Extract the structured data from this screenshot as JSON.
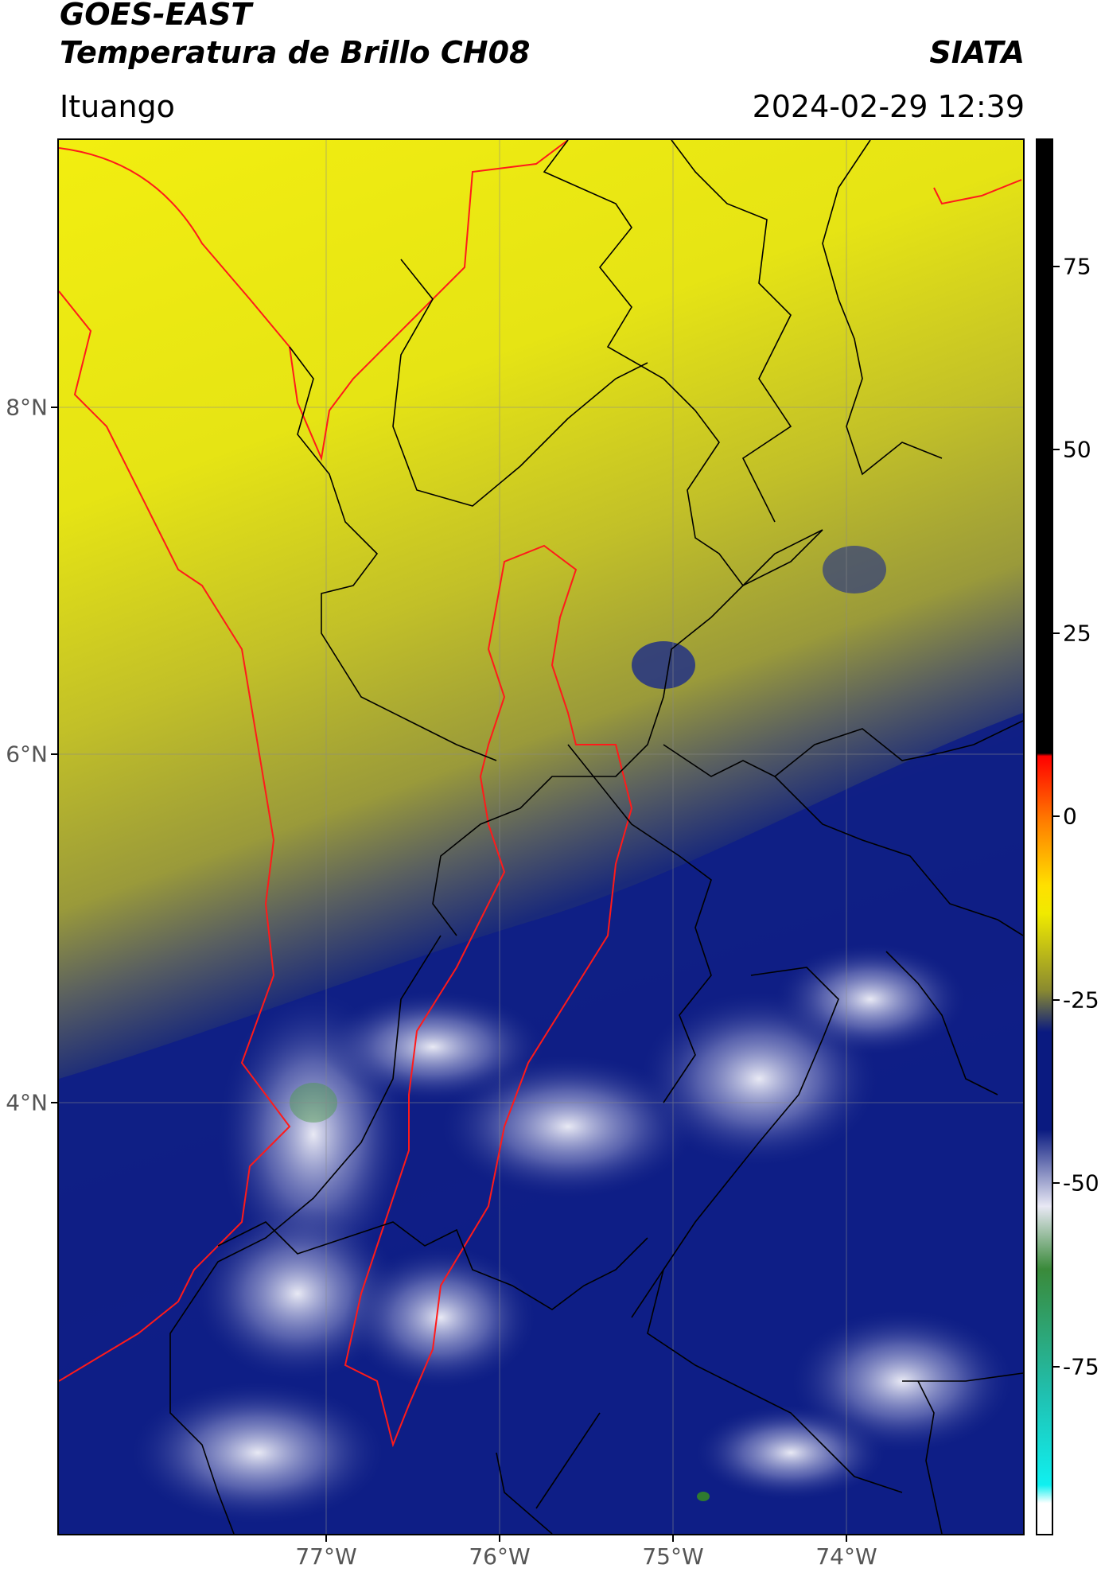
{
  "header": {
    "satellite": "GOES-EAST",
    "product": "Temperatura de Brillo CH08",
    "brand": "SIATA",
    "location": "Ituango",
    "timestamp": "2024-02-29 12:39"
  },
  "map": {
    "latitude_labels": [
      "8°N",
      "6°N",
      "4°N"
    ],
    "longitude_labels": [
      "77°W",
      "76°W",
      "75°W",
      "74°W"
    ],
    "boundary_colors": {
      "department_borders": "#000000",
      "basin_outline": "#ff0000",
      "coastline": "#ff0000"
    }
  },
  "colorbar": {
    "tick_labels": [
      "75",
      "50",
      "25",
      "0",
      "-25",
      "-50",
      "-75"
    ],
    "colors": {
      "top": "#000000",
      "warm": [
        "#ff0000",
        "#ff8000",
        "#ffe000"
      ],
      "yellow": "#f0ea00",
      "olive": "#8a8a30",
      "navy": "#0a1a80",
      "light": "#e8e8f4",
      "green": "#3a8a3a",
      "teal": "#20c0b0",
      "cyan": "#10f0f0",
      "bottom": "#ffffff"
    }
  }
}
